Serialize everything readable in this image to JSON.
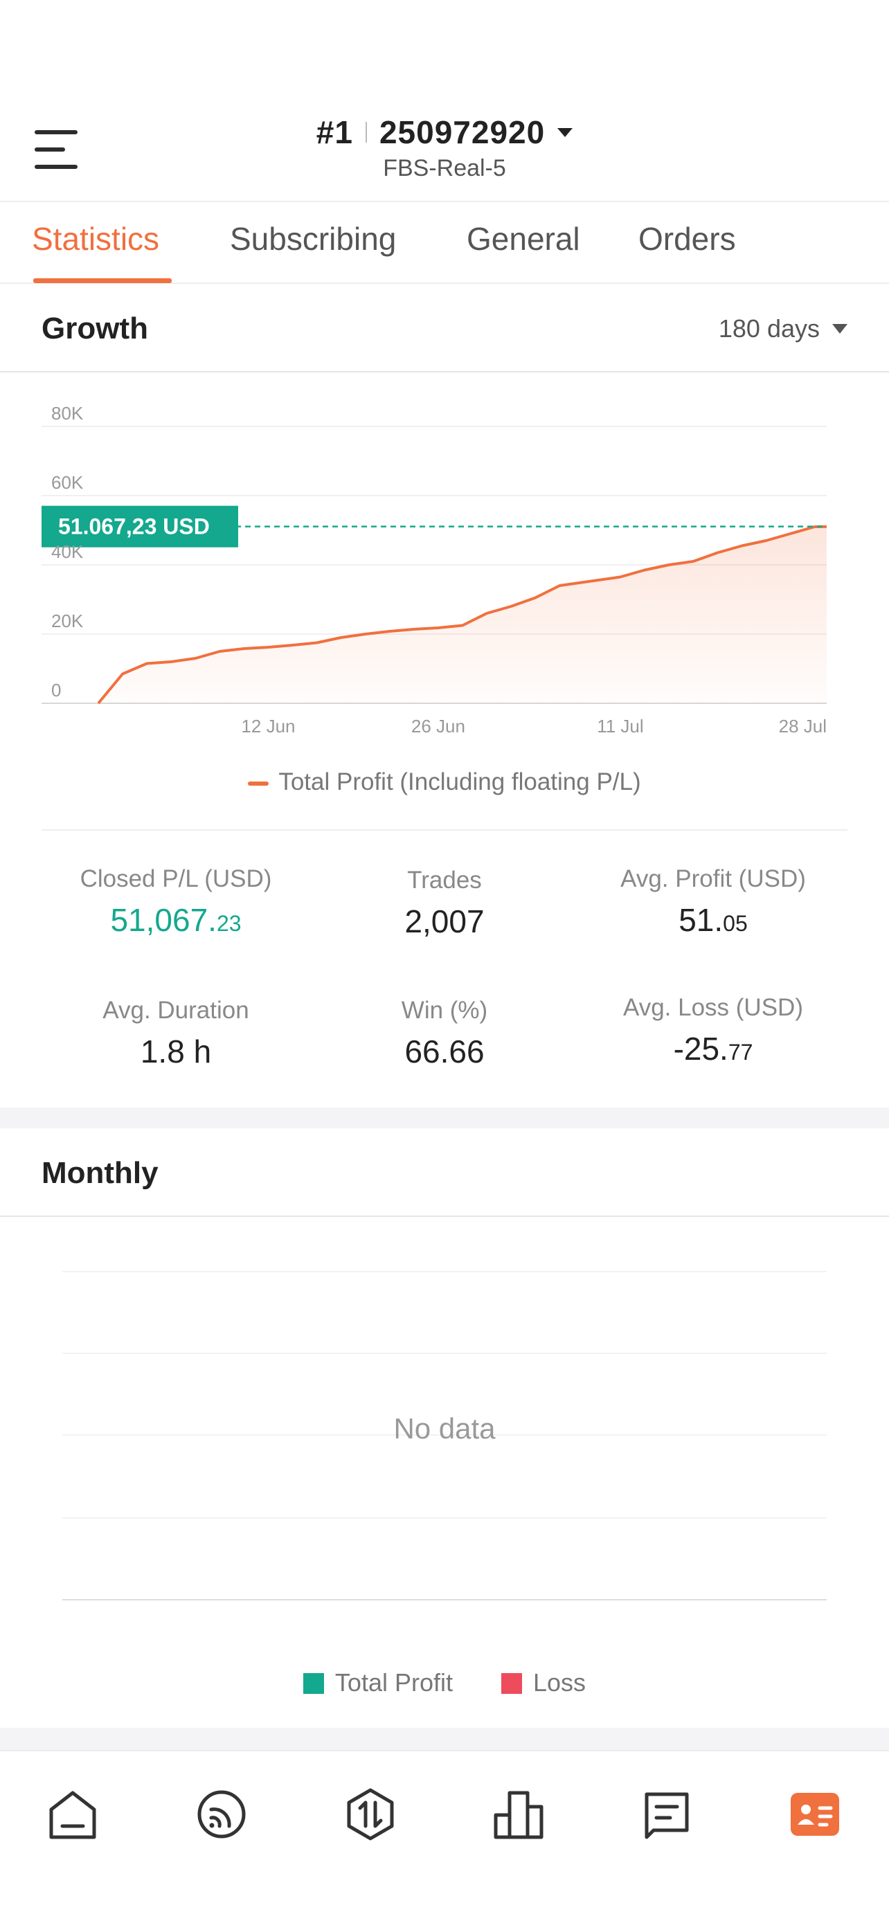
{
  "header": {
    "rank": "#1",
    "account_number": "250972920",
    "server": "FBS-Real-5"
  },
  "tabs": [
    {
      "label": "Statistics",
      "active": true
    },
    {
      "label": "Subscribing",
      "active": false
    },
    {
      "label": "General",
      "active": false
    },
    {
      "label": "Orders",
      "active": false
    }
  ],
  "growth": {
    "title": "Growth",
    "range_label": "180 days",
    "current_label": "51.067,23 USD",
    "legend": "Total Profit (Including floating P/L)"
  },
  "chart_data": {
    "type": "area",
    "title": "",
    "series": [
      {
        "name": "Total Profit (Including floating P/L)",
        "color": "#f0703e",
        "x": [
          "2024-05-29",
          "2024-05-31",
          "2024-06-02",
          "2024-06-04",
          "2024-06-06",
          "2024-06-08",
          "2024-06-10",
          "2024-06-12",
          "2024-06-14",
          "2024-06-16",
          "2024-06-18",
          "2024-06-20",
          "2024-06-22",
          "2024-06-24",
          "2024-06-26",
          "2024-06-28",
          "2024-06-30",
          "2024-07-02",
          "2024-07-04",
          "2024-07-06",
          "2024-07-08",
          "2024-07-11",
          "2024-07-13",
          "2024-07-15",
          "2024-07-17",
          "2024-07-19",
          "2024-07-21",
          "2024-07-23",
          "2024-07-25",
          "2024-07-27",
          "2024-07-28"
        ],
        "values": [
          0,
          8500,
          11500,
          12000,
          13000,
          15000,
          15800,
          16200,
          16800,
          17500,
          19000,
          20000,
          20800,
          21400,
          21800,
          22500,
          26000,
          28000,
          30500,
          34000,
          35000,
          36500,
          38500,
          40000,
          41000,
          43500,
          45500,
          47000,
          49000,
          51000,
          51067.23
        ]
      }
    ],
    "x_ticks": [
      "12 Jun",
      "26 Jun",
      "11 Jul",
      "28 Jul"
    ],
    "x_tick_dates": [
      "2024-06-12",
      "2024-06-26",
      "2024-07-11",
      "2024-07-28"
    ],
    "x_range": [
      "2024-05-29",
      "2024-07-28"
    ],
    "y_ticks": [
      0,
      20000,
      40000,
      60000,
      80000
    ],
    "y_tick_labels": [
      "0",
      "20K",
      "40K",
      "60K",
      "80K"
    ],
    "ylim": [
      0,
      80000
    ],
    "reference_value": 51067.23,
    "grid": true,
    "legend_position": "bottom-center"
  },
  "stats": [
    {
      "label": "Closed P/L (USD)",
      "int": "51,067.",
      "dec": "23",
      "highlight": true
    },
    {
      "label": "Trades",
      "int": "2,007",
      "dec": "",
      "highlight": false
    },
    {
      "label": "Avg. Profit (USD)",
      "int": "51.",
      "dec": "05",
      "highlight": false
    },
    {
      "label": "Avg. Duration",
      "int": "1.8 h",
      "dec": "",
      "highlight": false
    },
    {
      "label": "Win (%)",
      "int": "66.66",
      "dec": "",
      "highlight": false
    },
    {
      "label": "Avg. Loss (USD)",
      "int": "-25.",
      "dec": "77",
      "highlight": false
    }
  ],
  "monthly": {
    "title": "Monthly",
    "empty_text": "No data",
    "legend": [
      {
        "label": "Total Profit",
        "color": "#14a88e"
      },
      {
        "label": "Loss",
        "color": "#ee4b5c"
      }
    ]
  },
  "colors": {
    "accent": "#f0703e",
    "positive": "#14a88e",
    "negative": "#ee4b5c"
  },
  "bottom_nav": [
    {
      "icon": "home-icon",
      "active": false
    },
    {
      "icon": "signal-feed-icon",
      "active": false
    },
    {
      "icon": "trade-hexagon-icon",
      "active": false
    },
    {
      "icon": "ranking-podium-icon",
      "active": false
    },
    {
      "icon": "messages-icon",
      "active": false
    },
    {
      "icon": "profile-card-icon",
      "active": true
    }
  ]
}
